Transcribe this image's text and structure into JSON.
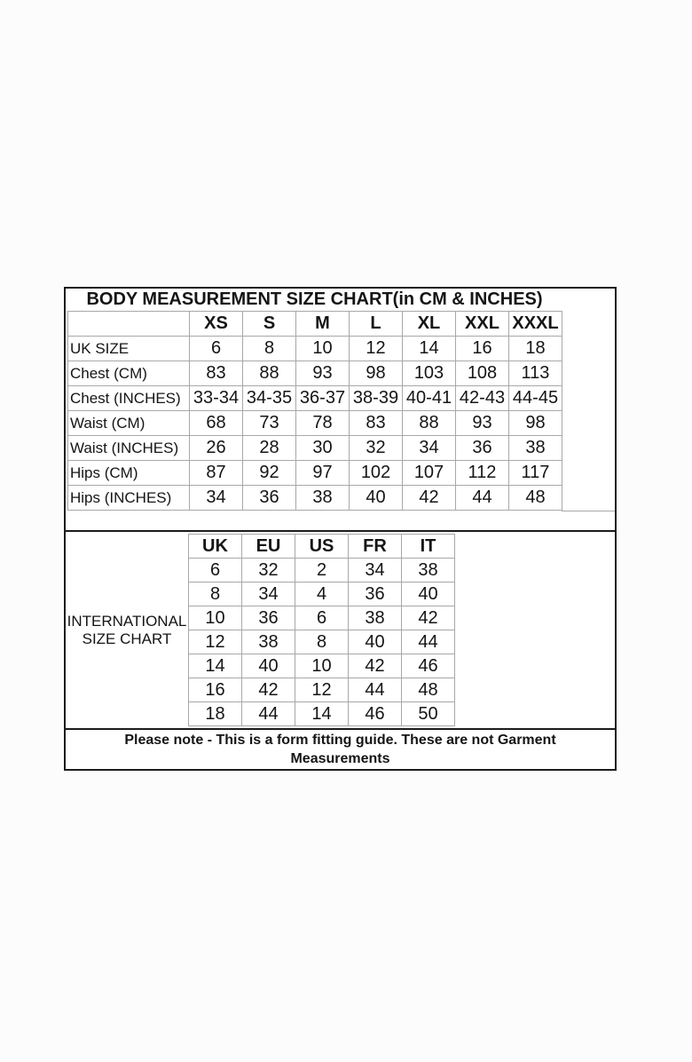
{
  "title": "BODY MEASUREMENT SIZE CHART(in CM & INCHES)",
  "body_chart": {
    "columns": [
      "XS",
      "S",
      "M",
      "L",
      "XL",
      "XXL",
      "XXXL"
    ],
    "rows": [
      {
        "label": "UK SIZE",
        "values": [
          "6",
          "8",
          "10",
          "12",
          "14",
          "16",
          "18"
        ]
      },
      {
        "label": "Chest (CM)",
        "values": [
          "83",
          "88",
          "93",
          "98",
          "103",
          "108",
          "113"
        ]
      },
      {
        "label": "Chest (INCHES)",
        "values": [
          "33-34",
          "34-35",
          "36-37",
          "38-39",
          "40-41",
          "42-43",
          "44-45"
        ]
      },
      {
        "label": "Waist (CM)",
        "values": [
          "68",
          "73",
          "78",
          "83",
          "88",
          "93",
          "98"
        ]
      },
      {
        "label": "Waist (INCHES)",
        "values": [
          "26",
          "28",
          "30",
          "32",
          "34",
          "36",
          "38"
        ]
      },
      {
        "label": "Hips (CM)",
        "values": [
          "87",
          "92",
          "97",
          "102",
          "107",
          "112",
          "117"
        ]
      },
      {
        "label": "Hips (INCHES)",
        "values": [
          "34",
          "36",
          "38",
          "40",
          "42",
          "44",
          "48"
        ]
      }
    ]
  },
  "international_chart": {
    "label_line1": "INTERNATIONAL",
    "label_line2": "SIZE CHART",
    "columns": [
      "UK",
      "EU",
      "US",
      "FR",
      "IT"
    ],
    "rows": [
      [
        "6",
        "32",
        "2",
        "34",
        "38"
      ],
      [
        "8",
        "34",
        "4",
        "36",
        "40"
      ],
      [
        "10",
        "36",
        "6",
        "38",
        "42"
      ],
      [
        "12",
        "38",
        "8",
        "40",
        "44"
      ],
      [
        "14",
        "40",
        "10",
        "42",
        "46"
      ],
      [
        "16",
        "42",
        "12",
        "44",
        "48"
      ],
      [
        "18",
        "44",
        "14",
        "46",
        "50"
      ]
    ]
  },
  "note": {
    "line1": "Please note - This is a form fitting guide. These are not Garment",
    "line2": "Measurements"
  },
  "colors": {
    "frame": "#1c1c1c",
    "grid": "#a8a8a8",
    "text": "#151515",
    "background": "#ffffff"
  }
}
